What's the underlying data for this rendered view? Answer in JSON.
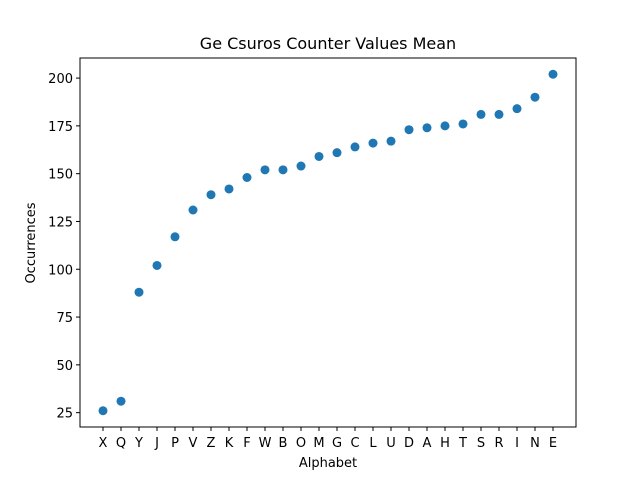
{
  "chart_data": {
    "type": "scatter",
    "title": "Ge Csuros Counter Values Mean",
    "xlabel": "Alphabet",
    "ylabel": "Occurrences",
    "categories": [
      "X",
      "Q",
      "Y",
      "J",
      "P",
      "V",
      "Z",
      "K",
      "F",
      "W",
      "B",
      "O",
      "M",
      "G",
      "C",
      "L",
      "U",
      "D",
      "A",
      "H",
      "T",
      "S",
      "R",
      "I",
      "N",
      "E"
    ],
    "values": [
      26,
      31,
      88,
      102,
      117,
      131,
      139,
      142,
      148,
      152,
      152,
      154,
      159,
      161,
      164,
      166,
      167,
      173,
      174,
      175,
      176,
      181,
      181,
      184,
      190,
      202
    ],
    "yticks": [
      25,
      50,
      75,
      100,
      125,
      150,
      175,
      200
    ],
    "ylim": [
      17.5,
      210.5
    ],
    "grid": false,
    "marker_color": "#1f77b4"
  }
}
